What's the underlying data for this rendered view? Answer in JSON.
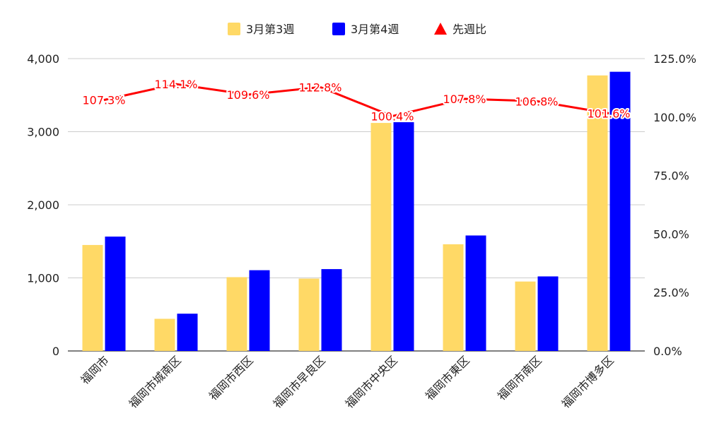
{
  "chart_data": {
    "type": "bar",
    "categories": [
      "福岡市",
      "福岡市城南区",
      "福岡市西区",
      "福岡市早良区",
      "福岡市中央区",
      "福岡市東区",
      "福岡市南区",
      "福岡市博多区"
    ],
    "series": [
      {
        "name": "3月第3週",
        "type": "bar",
        "axis": "left",
        "color": "#FFD966",
        "values": [
          1450,
          440,
          1010,
          990,
          3120,
          1460,
          950,
          3770
        ]
      },
      {
        "name": "3月第4週",
        "type": "bar",
        "axis": "left",
        "color": "#0000FF",
        "values": [
          1565,
          510,
          1105,
          1120,
          3130,
          1580,
          1020,
          3820
        ]
      },
      {
        "name": "先週比",
        "type": "line",
        "axis": "right",
        "color": "#FF0000",
        "values": [
          107.3,
          114.1,
          109.6,
          112.8,
          100.4,
          107.8,
          106.8,
          101.6
        ],
        "labels": [
          "107.3%",
          "114.1%",
          "109.6%",
          "112.8%",
          "100.4%",
          "107.8%",
          "106.8%",
          "101.6%"
        ]
      }
    ],
    "y_left": {
      "ylim": [
        0,
        4000
      ],
      "ticks": [
        0,
        1000,
        2000,
        3000,
        4000
      ],
      "tick_labels": [
        "0",
        "1,000",
        "2,000",
        "3,000",
        "4,000"
      ]
    },
    "y_right": {
      "ylim": [
        0,
        125
      ],
      "ticks": [
        0,
        25,
        50,
        75,
        100,
        125
      ],
      "tick_labels": [
        "0.0%",
        "25.0%",
        "50.0%",
        "75.0%",
        "100.0%",
        "125.0%"
      ]
    },
    "grid": true,
    "legend_position": "top-center",
    "title": "",
    "xlabel": "",
    "ylabel": ""
  }
}
